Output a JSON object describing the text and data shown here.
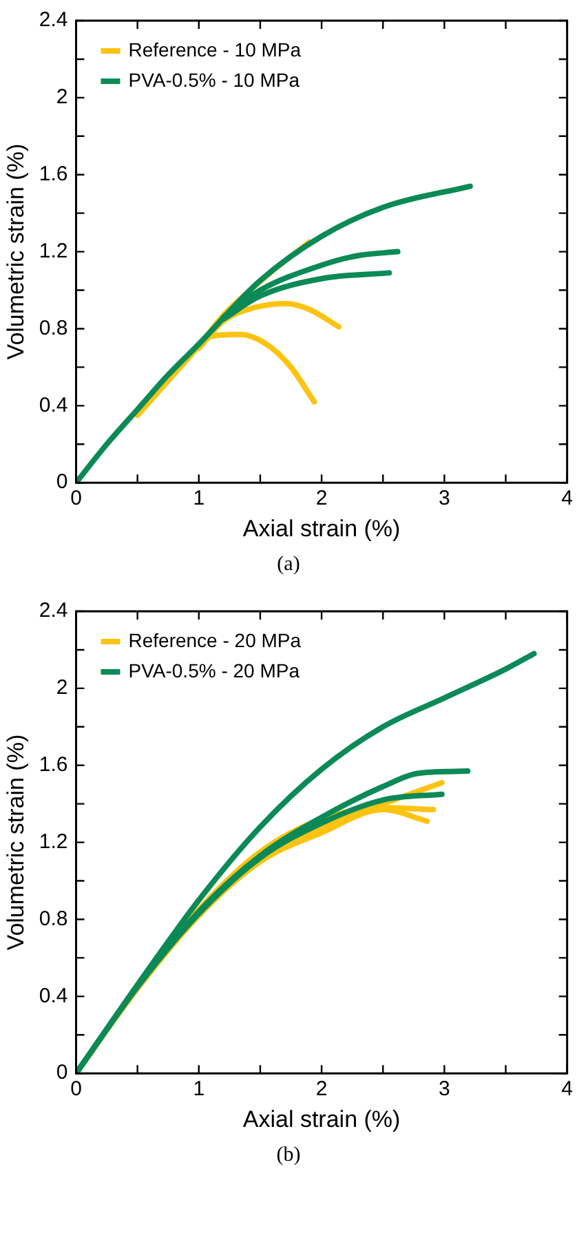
{
  "chart_data": [
    {
      "type": "line",
      "xlabel": "Axial strain (%)",
      "ylabel": "Volumetric strain (%)",
      "annotations": [
        "(a)"
      ],
      "legend": "top left",
      "grid": false,
      "marker": "none",
      "line_style": "solid",
      "xlim": [
        0,
        4
      ],
      "xticks": [
        0,
        {
          "value": 0.5,
          "label": null
        },
        1,
        {
          "value": 1.5,
          "label": null
        },
        2,
        {
          "value": 2.5,
          "label": null
        },
        3,
        {
          "value": 3.5,
          "label": null
        },
        4
      ],
      "ylim": [
        0,
        2.4
      ],
      "yticks": [
        0,
        {
          "value": 0.2,
          "label": null
        },
        0.4,
        {
          "value": 0.6,
          "label": null
        },
        0.8,
        {
          "value": 1.0,
          "label": null
        },
        1.2,
        {
          "value": 1.4,
          "label": null
        },
        1.6,
        {
          "value": 1.8,
          "label": null
        },
        2,
        {
          "value": 2.2,
          "label": null
        },
        2.4
      ],
      "series": [
        {
          "name": "Reference - 10 MPa",
          "color": "#fcc310",
          "x": [
            0.5,
            0.75,
            1.0,
            1.2,
            1.4,
            1.6,
            1.9
          ],
          "values": [
            0.35,
            0.53,
            0.71,
            0.87,
            0.99,
            1.1,
            1.25
          ]
        },
        {
          "color": "#fcc310",
          "x": [
            1.0,
            1.2,
            1.4,
            1.71,
            1.9,
            2.14
          ],
          "values": [
            0.7,
            0.84,
            0.9,
            0.93,
            0.9,
            0.81
          ]
        },
        {
          "color": "#fcc310",
          "x": [
            1.0,
            1.1,
            1.33,
            1.55,
            1.75,
            1.94
          ],
          "values": [
            0.7,
            0.76,
            0.77,
            0.72,
            0.6,
            0.42
          ]
        },
        {
          "name": "PVA-0.5% - 10 MPa",
          "color": "#0b8a57",
          "x": [
            0,
            0.25,
            0.5,
            0.75,
            1.0,
            1.5,
            2.0,
            2.5,
            3.21
          ],
          "values": [
            0,
            0.2,
            0.38,
            0.56,
            0.72,
            1.05,
            1.28,
            1.43,
            1.54
          ]
        },
        {
          "color": "#0b8a57",
          "x": [
            1.2,
            1.5,
            2.0,
            2.3,
            2.62
          ],
          "values": [
            0.86,
            1.0,
            1.13,
            1.18,
            1.2
          ]
        },
        {
          "color": "#0b8a57",
          "x": [
            1.2,
            1.5,
            2.0,
            2.55
          ],
          "values": [
            0.85,
            0.97,
            1.06,
            1.09
          ]
        }
      ]
    },
    {
      "type": "line",
      "xlabel": "Axial strain (%)",
      "ylabel": "Volumetric strain (%)",
      "annotations": [
        "(b)"
      ],
      "legend": "top left",
      "grid": false,
      "marker": "none",
      "line_style": "solid",
      "xlim": [
        0,
        4
      ],
      "xticks": [
        0,
        {
          "value": 0.5,
          "label": null
        },
        1,
        {
          "value": 1.5,
          "label": null
        },
        2,
        {
          "value": 2.5,
          "label": null
        },
        3,
        {
          "value": 3.5,
          "label": null
        },
        4
      ],
      "ylim": [
        0,
        2.4
      ],
      "yticks": [
        0,
        {
          "value": 0.2,
          "label": null
        },
        0.4,
        {
          "value": 0.6,
          "label": null
        },
        0.8,
        {
          "value": 1.0,
          "label": null
        },
        1.2,
        {
          "value": 1.4,
          "label": null
        },
        1.6,
        {
          "value": 1.8,
          "label": null
        },
        2,
        {
          "value": 2.2,
          "label": null
        },
        2.4
      ],
      "series": [
        {
          "name": "Reference - 20 MPa",
          "color": "#fcc310",
          "x": [
            0,
            0.5,
            1,
            1.5,
            2,
            2.5,
            2.98
          ],
          "values": [
            0,
            0.45,
            0.84,
            1.12,
            1.28,
            1.4,
            1.51
          ]
        },
        {
          "color": "#fcc310",
          "x": [
            0,
            0.5,
            1,
            1.5,
            2,
            2.5,
            2.91
          ],
          "values": [
            0,
            0.45,
            0.85,
            1.15,
            1.32,
            1.38,
            1.37
          ]
        },
        {
          "color": "#fcc310",
          "x": [
            0,
            0.5,
            1,
            1.5,
            2,
            2.5,
            2.86
          ],
          "values": [
            0,
            0.44,
            0.82,
            1.1,
            1.25,
            1.37,
            1.31
          ]
        },
        {
          "name": "PVA-0.5% - 20 MPa",
          "color": "#0b8a57",
          "x": [
            0,
            0.5,
            1,
            1.5,
            2,
            2.5,
            3,
            3.5,
            3.73
          ],
          "values": [
            0,
            0.46,
            0.9,
            1.28,
            1.58,
            1.8,
            1.95,
            2.1,
            2.18
          ]
        },
        {
          "color": "#0b8a57",
          "x": [
            0,
            0.5,
            1,
            1.5,
            2,
            2.5,
            2.8,
            3.19
          ],
          "values": [
            0,
            0.45,
            0.84,
            1.13,
            1.33,
            1.49,
            1.56,
            1.57
          ]
        },
        {
          "color": "#0b8a57",
          "x": [
            0,
            0.5,
            1,
            1.5,
            2,
            2.5,
            2.98
          ],
          "values": [
            0,
            0.45,
            0.83,
            1.12,
            1.3,
            1.42,
            1.45
          ]
        }
      ]
    }
  ]
}
